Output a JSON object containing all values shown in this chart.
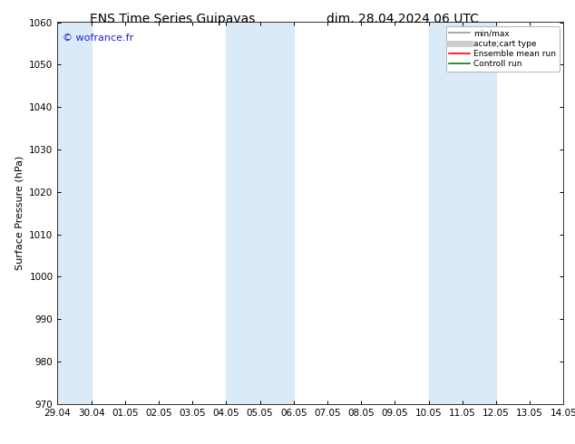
{
  "title_left": "ENS Time Series Guipavas",
  "title_right": "dim. 28.04.2024 06 UTC",
  "ylabel": "Surface Pressure (hPa)",
  "ylim": [
    970,
    1060
  ],
  "yticks": [
    970,
    980,
    990,
    1000,
    1010,
    1020,
    1030,
    1040,
    1050,
    1060
  ],
  "xtick_labels": [
    "29.04",
    "30.04",
    "01.05",
    "02.05",
    "03.05",
    "04.05",
    "05.05",
    "06.05",
    "07.05",
    "08.05",
    "09.05",
    "10.05",
    "11.05",
    "12.05",
    "13.05",
    "14.05"
  ],
  "watermark": "© wofrance.fr",
  "watermark_color": "#2222cc",
  "background_color": "#ffffff",
  "shaded_bands": [
    {
      "xmin": 0,
      "xmax": 1
    },
    {
      "xmin": 5,
      "xmax": 7
    },
    {
      "xmin": 11,
      "xmax": 13
    }
  ],
  "shade_color": "#daeaf7",
  "legend_entries": [
    {
      "label": "min/max",
      "color": "#999999",
      "lw": 1.2,
      "style": "solid"
    },
    {
      "label": "acute;cart type",
      "color": "#cccccc",
      "lw": 5,
      "style": "solid"
    },
    {
      "label": "Ensemble mean run",
      "color": "#ff0000",
      "lw": 1.2,
      "style": "solid"
    },
    {
      "label": "Controll run",
      "color": "#008000",
      "lw": 1.2,
      "style": "solid"
    }
  ],
  "title_fontsize": 10,
  "label_fontsize": 8,
  "tick_fontsize": 7.5
}
